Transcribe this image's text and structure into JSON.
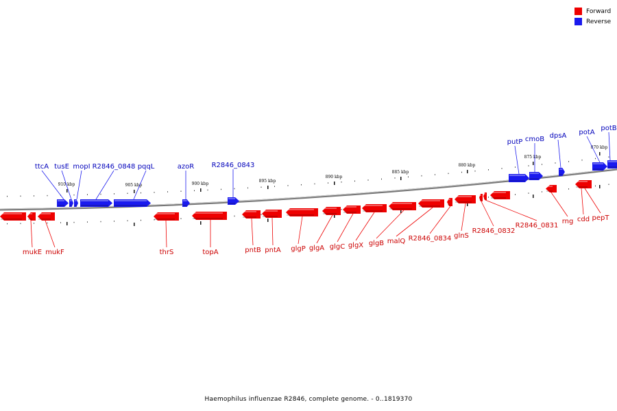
{
  "caption": "Haemophilus influenzae R2846, complete genome. - 0..1819370",
  "legend": {
    "forward": {
      "label": "Forward",
      "color": "#ee0000"
    },
    "reverse": {
      "label": "Reverse",
      "color": "#1a1aee"
    }
  },
  "colors": {
    "forward": "#ee0000",
    "reverse": "#1a1aee",
    "backbone": "#888888"
  },
  "kbp_labels": [
    "910 kbp",
    "905 kbp",
    "900 kbp",
    "895 kbp",
    "890 kbp",
    "885 kbp",
    "880 kbp",
    "875 kbp",
    "870 kbp"
  ],
  "reverse_genes": [
    "ttcA",
    "tusE",
    "mopI",
    "R2846_0848",
    "pqqL",
    "azoR",
    "R2846_0843",
    "putP",
    "cmoB",
    "dpsA",
    "potA",
    "potB"
  ],
  "forward_genes": [
    "mukE",
    "mukF",
    "thrS",
    "topA",
    "pntB",
    "pntA",
    "glgP",
    "glgA",
    "glgC",
    "glgX",
    "glgB",
    "malQ",
    "R2846_0834",
    "glnS",
    "R2846_0832",
    "R2846_0831",
    "rng",
    "cdd",
    "pepT"
  ]
}
